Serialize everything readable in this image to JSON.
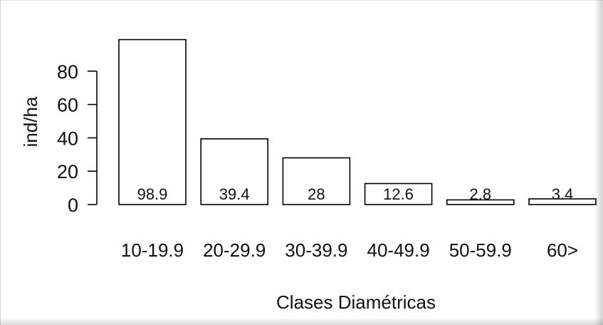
{
  "chart_data": {
    "type": "bar",
    "categories": [
      "10-19.9",
      "20-29.9",
      "30-39.9",
      "40-49.9",
      "50-59.9",
      "60>"
    ],
    "values": [
      98.9,
      39.4,
      28,
      12.6,
      2.8,
      3.4
    ],
    "data_labels": [
      "98.9",
      "39.4",
      "28",
      "12.6",
      "2.8",
      "3.4"
    ],
    "xlabel": "Clases Diamétricas",
    "ylabel": "ind/ha",
    "y_ticks": [
      0,
      20,
      40,
      60,
      80
    ],
    "y_tick_labels": [
      "0",
      "20",
      "40",
      "60",
      "80"
    ],
    "ylim": [
      0,
      100
    ],
    "grid": false,
    "bar_fill": "#ffffff",
    "bar_stroke": "#000000"
  }
}
